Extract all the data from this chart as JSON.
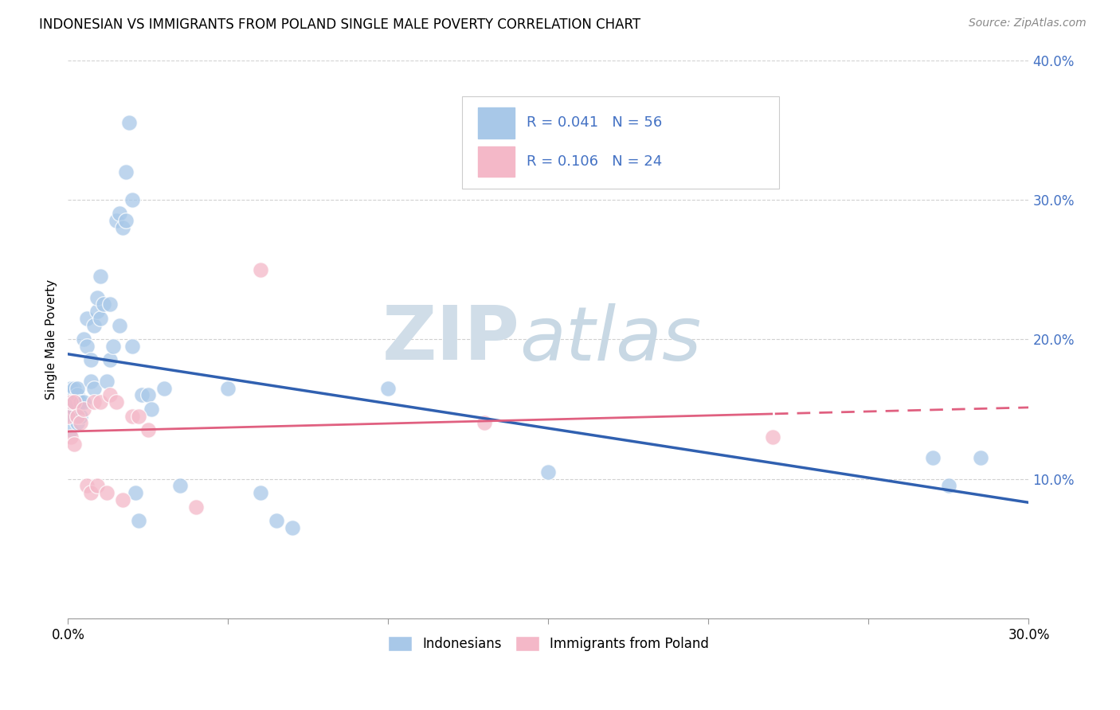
{
  "title": "INDONESIAN VS IMMIGRANTS FROM POLAND SINGLE MALE POVERTY CORRELATION CHART",
  "source": "Source: ZipAtlas.com",
  "ylabel_label": "Single Male Poverty",
  "legend_label1": "Indonesians",
  "legend_label2": "Immigrants from Poland",
  "R1": "0.041",
  "N1": "56",
  "R2": "0.106",
  "N2": "24",
  "color_blue": "#a8c8e8",
  "color_pink": "#f4b8c8",
  "color_line_blue": "#3060b0",
  "color_line_pink": "#e06080",
  "xlim": [
    0.0,
    0.3
  ],
  "ylim": [
    0.0,
    0.4
  ],
  "indonesian_x": [
    0.0,
    0.0,
    0.001,
    0.001,
    0.001,
    0.001,
    0.002,
    0.002,
    0.002,
    0.003,
    0.003,
    0.003,
    0.004,
    0.004,
    0.005,
    0.005,
    0.006,
    0.006,
    0.007,
    0.007,
    0.008,
    0.008,
    0.009,
    0.009,
    0.01,
    0.01,
    0.011,
    0.012,
    0.013,
    0.013,
    0.014,
    0.015,
    0.016,
    0.016,
    0.017,
    0.018,
    0.018,
    0.019,
    0.02,
    0.02,
    0.021,
    0.022,
    0.023,
    0.025,
    0.026,
    0.03,
    0.035,
    0.05,
    0.06,
    0.065,
    0.07,
    0.1,
    0.15,
    0.27,
    0.275,
    0.285
  ],
  "indonesian_y": [
    0.155,
    0.145,
    0.16,
    0.135,
    0.155,
    0.165,
    0.15,
    0.155,
    0.165,
    0.14,
    0.16,
    0.165,
    0.145,
    0.155,
    0.155,
    0.2,
    0.195,
    0.215,
    0.17,
    0.185,
    0.21,
    0.165,
    0.22,
    0.23,
    0.215,
    0.245,
    0.225,
    0.17,
    0.185,
    0.225,
    0.195,
    0.285,
    0.21,
    0.29,
    0.28,
    0.285,
    0.32,
    0.355,
    0.3,
    0.195,
    0.09,
    0.07,
    0.16,
    0.16,
    0.15,
    0.165,
    0.095,
    0.165,
    0.09,
    0.07,
    0.065,
    0.165,
    0.105,
    0.115,
    0.095,
    0.115
  ],
  "poland_x": [
    0.0,
    0.001,
    0.001,
    0.002,
    0.002,
    0.003,
    0.004,
    0.005,
    0.006,
    0.007,
    0.008,
    0.009,
    0.01,
    0.012,
    0.013,
    0.015,
    0.017,
    0.02,
    0.022,
    0.025,
    0.04,
    0.06,
    0.13,
    0.22
  ],
  "poland_y": [
    0.145,
    0.13,
    0.155,
    0.125,
    0.155,
    0.145,
    0.14,
    0.15,
    0.095,
    0.09,
    0.155,
    0.095,
    0.155,
    0.09,
    0.16,
    0.155,
    0.085,
    0.145,
    0.145,
    0.135,
    0.08,
    0.25,
    0.14,
    0.13
  ],
  "watermark_zip": "ZIP",
  "watermark_atlas": "atlas",
  "background_color": "#ffffff",
  "grid_color": "#cccccc",
  "right_axis_color": "#4472c4"
}
